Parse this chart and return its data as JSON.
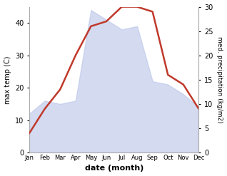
{
  "months": [
    "Jan",
    "Feb",
    "Mar",
    "Apr",
    "May",
    "Jun",
    "Jul",
    "Aug",
    "Sep",
    "Oct",
    "Nov",
    "Dec"
  ],
  "temp": [
    12,
    16,
    15,
    16,
    44,
    41,
    38,
    39,
    22,
    21,
    18,
    14
  ],
  "precip": [
    4,
    9,
    13,
    20,
    26,
    27,
    30,
    30,
    29,
    16,
    14,
    9
  ],
  "temp_ylim": [
    0,
    45
  ],
  "precip_ylim": [
    0,
    30
  ],
  "temp_fill_color": "#b8c4e8",
  "precip_line_color": "#c0392b",
  "left_label": "max temp (C)",
  "right_label": "med. precipitation (kg/m2)",
  "xlabel": "date (month)",
  "bg_color": "#ffffff",
  "plot_bg_color": "#ffffff",
  "left_yticks": [
    0,
    10,
    20,
    30,
    40
  ],
  "right_yticks": [
    0,
    5,
    10,
    15,
    20,
    25,
    30
  ]
}
